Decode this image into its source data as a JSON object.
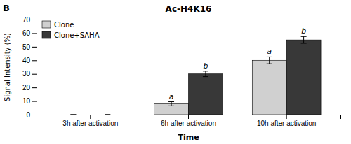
{
  "chart_data": {
    "type": "bar",
    "title": "Ac-H4K16",
    "panel_label": "B",
    "x_label": "Time",
    "y_label": "Signal Intensity (%)",
    "categories": [
      "3h after activation",
      "6h after activation",
      "10h after activation"
    ],
    "series": [
      {
        "name": "Clone",
        "color": "#d0d0d0",
        "values": [
          0,
          8,
          40
        ],
        "errors": [
          0,
          1.5,
          2.5
        ],
        "annotations": [
          null,
          "a",
          "a"
        ]
      },
      {
        "name": "Clone+SAHA",
        "color": "#383838",
        "values": [
          0,
          30,
          55
        ],
        "errors": [
          0,
          2.0,
          2.5
        ],
        "annotations": [
          null,
          "b",
          "b"
        ]
      }
    ],
    "ylim": [
      0,
      70
    ],
    "yticks": [
      0,
      10,
      20,
      30,
      40,
      50,
      60,
      70
    ],
    "legend": "upper left"
  }
}
